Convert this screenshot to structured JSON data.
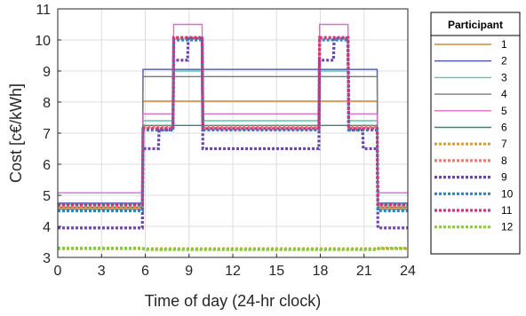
{
  "chart_data": {
    "type": "line",
    "xlabel": "Time of day (24-hr clock)",
    "ylabel": "Cost [c€/kWh]",
    "xlim": [
      0,
      24
    ],
    "ylim": [
      3,
      11
    ],
    "xticks": [
      "0",
      "3",
      "6",
      "9",
      "12",
      "15",
      "18",
      "21",
      "24"
    ],
    "yticks": [
      "3",
      "4",
      "5",
      "6",
      "7",
      "8",
      "9",
      "10",
      "11"
    ],
    "grid": true,
    "legend": {
      "title": "Participant",
      "placement": "outside-right"
    },
    "series": [
      {
        "name": "1",
        "color": "#D9892B",
        "style": "solid",
        "x": [
          0,
          5.8,
          5.85,
          21.9,
          21.95,
          24
        ],
        "y": [
          4.6,
          4.6,
          8.03,
          8.03,
          4.6,
          4.6
        ]
      },
      {
        "name": "2",
        "color": "#4A5BA8",
        "style": "solid",
        "x": [
          0,
          5.8,
          5.85,
          21.9,
          21.95,
          24
        ],
        "y": [
          4.75,
          4.75,
          9.05,
          9.05,
          4.75,
          4.75
        ]
      },
      {
        "name": "3",
        "color": "#5DC4B0",
        "style": "solid",
        "x": [
          0,
          5.8,
          5.85,
          7.9,
          7.95,
          9.9,
          9.95,
          17.9,
          17.95,
          19.9,
          19.95,
          21.9,
          21.95,
          24
        ],
        "y": [
          4.7,
          4.7,
          7.4,
          7.4,
          9.0,
          9.0,
          7.4,
          7.4,
          9.0,
          9.0,
          7.4,
          7.4,
          4.7,
          4.7
        ]
      },
      {
        "name": "4",
        "color": "#7A7A7A",
        "style": "solid",
        "x": [
          0,
          5.8,
          5.85,
          21.9,
          21.95,
          24
        ],
        "y": [
          4.55,
          4.55,
          8.82,
          8.82,
          4.55,
          4.55
        ]
      },
      {
        "name": "5",
        "color": "#D86FC8",
        "style": "solid",
        "x": [
          0,
          5.8,
          5.85,
          7.9,
          7.95,
          9.9,
          9.95,
          17.9,
          17.95,
          19.9,
          19.95,
          21.9,
          21.95,
          24
        ],
        "y": [
          5.08,
          5.08,
          7.62,
          7.62,
          10.5,
          10.5,
          7.62,
          7.62,
          10.5,
          10.5,
          7.62,
          7.62,
          5.08,
          5.08
        ]
      },
      {
        "name": "6",
        "color": "#2E8B7A",
        "style": "solid",
        "x": [
          0,
          5.8,
          5.85,
          21.9,
          21.95,
          24
        ],
        "y": [
          4.62,
          4.62,
          7.25,
          7.25,
          4.62,
          4.62
        ]
      },
      {
        "name": "7",
        "color": "#D9A12B",
        "style": "dotted",
        "x": [
          0,
          24
        ],
        "y": [
          3.28,
          3.28
        ]
      },
      {
        "name": "8",
        "color": "#F07A6E",
        "style": "dotted",
        "x": [
          0,
          5.8,
          5.85,
          7.9,
          7.95,
          9.9,
          9.95,
          17.9,
          17.95,
          19.9,
          19.95,
          21.9,
          21.95,
          24
        ],
        "y": [
          4.65,
          4.65,
          7.2,
          7.2,
          10.05,
          10.05,
          7.2,
          7.2,
          10.05,
          10.05,
          7.2,
          7.2,
          4.65,
          4.65
        ]
      },
      {
        "name": "9",
        "color": "#6B46A8",
        "style": "dotted",
        "x": [
          0,
          5.8,
          5.85,
          6.9,
          6.95,
          7.9,
          7.95,
          8.9,
          8.95,
          9.9,
          9.95,
          17.9,
          17.95,
          18.9,
          18.95,
          19.9,
          19.95,
          20.9,
          20.95,
          21.9,
          21.95,
          24
        ],
        "y": [
          3.95,
          3.95,
          6.5,
          6.5,
          7.1,
          7.1,
          9.35,
          9.35,
          10.05,
          10.05,
          6.5,
          6.5,
          9.35,
          9.35,
          10.05,
          10.05,
          7.1,
          7.1,
          6.5,
          6.5,
          3.95,
          3.95
        ]
      },
      {
        "name": "10",
        "color": "#2E86C1",
        "style": "dotted",
        "x": [
          0,
          5.8,
          5.85,
          7.9,
          7.95,
          9.9,
          9.95,
          17.9,
          17.95,
          19.9,
          19.95,
          21.9,
          21.95,
          24
        ],
        "y": [
          4.5,
          4.5,
          7.1,
          7.1,
          10.0,
          10.0,
          7.1,
          7.1,
          10.0,
          10.0,
          7.1,
          7.1,
          4.5,
          4.5
        ]
      },
      {
        "name": "11",
        "color": "#D6337A",
        "style": "dotted",
        "x": [
          0,
          5.8,
          5.85,
          7.9,
          7.95,
          9.9,
          9.95,
          17.9,
          17.95,
          19.9,
          19.95,
          21.9,
          21.95,
          24
        ],
        "y": [
          4.7,
          4.7,
          7.15,
          7.15,
          10.08,
          10.08,
          7.15,
          7.15,
          10.08,
          10.08,
          7.15,
          7.15,
          4.7,
          4.7
        ]
      },
      {
        "name": "12",
        "color": "#8ACB3E",
        "style": "dotted",
        "x": [
          0,
          5.8,
          6.0,
          21.9,
          22.0,
          24
        ],
        "y": [
          3.3,
          3.3,
          3.25,
          3.25,
          3.3,
          3.3
        ]
      }
    ]
  }
}
